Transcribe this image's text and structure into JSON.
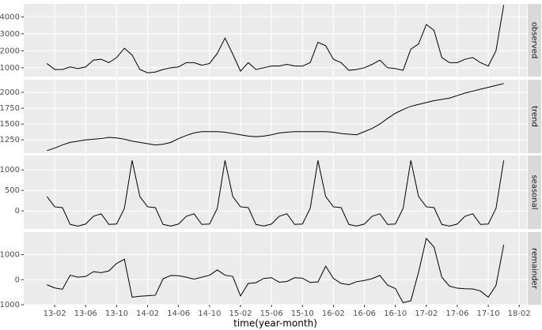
{
  "chart_data": [
    {
      "type": "line",
      "strip": "observed",
      "grid": true,
      "color": "#000000",
      "x": [
        "13-01",
        "13-02",
        "13-03",
        "13-04",
        "13-05",
        "13-06",
        "13-07",
        "13-08",
        "13-09",
        "13-10",
        "13-11",
        "13-12",
        "14-01",
        "14-02",
        "14-03",
        "14-04",
        "14-05",
        "14-06",
        "14-07",
        "14-08",
        "14-09",
        "14-10",
        "14-11",
        "14-12",
        "15-01",
        "15-02",
        "15-03",
        "15-04",
        "15-05",
        "15-06",
        "15-07",
        "15-08",
        "15-09",
        "15-10",
        "15-11",
        "15-12",
        "16-01",
        "16-02",
        "16-03",
        "16-04",
        "16-05",
        "16-06",
        "16-07",
        "16-08",
        "16-09",
        "16-10",
        "16-11",
        "16-12",
        "17-01",
        "17-02",
        "17-03",
        "17-04",
        "17-05",
        "17-06",
        "17-07",
        "17-08",
        "17-09",
        "17-10",
        "17-11",
        "17-12"
      ],
      "values": [
        1250,
        900,
        900,
        1050,
        950,
        1050,
        1450,
        1500,
        1300,
        1600,
        2150,
        1750,
        900,
        700,
        750,
        900,
        1000,
        1050,
        1300,
        1300,
        1150,
        1250,
        1850,
        2750,
        1800,
        800,
        1300,
        900,
        1000,
        1100,
        1100,
        1200,
        1100,
        1100,
        1300,
        2500,
        2300,
        1500,
        1300,
        850,
        900,
        1000,
        1200,
        1450,
        1000,
        950,
        850,
        2100,
        2400,
        3550,
        3200,
        1600,
        1300,
        1300,
        1500,
        1600,
        1300,
        1100,
        2000,
        4700
      ],
      "xlim": [
        "12-10",
        "18-03"
      ],
      "ylim": [
        480,
        4760
      ],
      "yticks": [
        1000,
        2000,
        3000,
        4000
      ]
    },
    {
      "type": "line",
      "strip": "trend",
      "grid": true,
      "color": "#000000",
      "x": [
        "13-01",
        "13-02",
        "13-03",
        "13-04",
        "13-05",
        "13-06",
        "13-07",
        "13-08",
        "13-09",
        "13-10",
        "13-11",
        "13-12",
        "14-01",
        "14-02",
        "14-03",
        "14-04",
        "14-05",
        "14-06",
        "14-07",
        "14-08",
        "14-09",
        "14-10",
        "14-11",
        "14-12",
        "15-01",
        "15-02",
        "15-03",
        "15-04",
        "15-05",
        "15-06",
        "15-07",
        "15-08",
        "15-09",
        "15-10",
        "15-11",
        "15-12",
        "16-01",
        "16-02",
        "16-03",
        "16-04",
        "16-05",
        "16-06",
        "16-07",
        "16-08",
        "16-09",
        "16-10",
        "16-11",
        "16-12",
        "17-01",
        "17-02",
        "17-03",
        "17-04",
        "17-05",
        "17-06",
        "17-07",
        "17-08",
        "17-09",
        "17-10",
        "17-11",
        "17-12"
      ],
      "values": [
        1080,
        1120,
        1170,
        1210,
        1230,
        1250,
        1260,
        1270,
        1290,
        1280,
        1260,
        1230,
        1210,
        1190,
        1170,
        1180,
        1210,
        1270,
        1320,
        1360,
        1380,
        1380,
        1380,
        1370,
        1350,
        1330,
        1310,
        1300,
        1310,
        1330,
        1360,
        1370,
        1380,
        1380,
        1380,
        1380,
        1380,
        1370,
        1350,
        1340,
        1330,
        1380,
        1430,
        1500,
        1590,
        1670,
        1730,
        1780,
        1810,
        1840,
        1870,
        1890,
        1910,
        1950,
        1990,
        2020,
        2050,
        2080,
        2110,
        2140
      ],
      "xlim": [
        "12-10",
        "18-03"
      ],
      "ylim": [
        1040,
        2200
      ],
      "yticks": [
        1250,
        1500,
        1750,
        2000
      ]
    },
    {
      "type": "line",
      "strip": "seasonal",
      "grid": true,
      "color": "#000000",
      "x": [
        "13-01",
        "13-02",
        "13-03",
        "13-04",
        "13-05",
        "13-06",
        "13-07",
        "13-08",
        "13-09",
        "13-10",
        "13-11",
        "13-12",
        "14-01",
        "14-02",
        "14-03",
        "14-04",
        "14-05",
        "14-06",
        "14-07",
        "14-08",
        "14-09",
        "14-10",
        "14-11",
        "14-12",
        "15-01",
        "15-02",
        "15-03",
        "15-04",
        "15-05",
        "15-06",
        "15-07",
        "15-08",
        "15-09",
        "15-10",
        "15-11",
        "15-12",
        "16-01",
        "16-02",
        "16-03",
        "16-04",
        "16-05",
        "16-06",
        "16-07",
        "16-08",
        "16-09",
        "16-10",
        "16-11",
        "16-12",
        "17-01",
        "17-02",
        "17-03",
        "17-04",
        "17-05",
        "17-06",
        "17-07",
        "17-08",
        "17-09",
        "17-10",
        "17-11",
        "17-12"
      ],
      "values": [
        350,
        100,
        80,
        -330,
        -370,
        -320,
        -130,
        -70,
        -330,
        -320,
        60,
        1230,
        350,
        100,
        80,
        -330,
        -370,
        -320,
        -130,
        -70,
        -330,
        -320,
        60,
        1230,
        350,
        100,
        80,
        -330,
        -370,
        -320,
        -130,
        -70,
        -330,
        -320,
        60,
        1230,
        350,
        100,
        80,
        -330,
        -370,
        -320,
        -130,
        -70,
        -330,
        -320,
        60,
        1230,
        350,
        100,
        80,
        -330,
        -370,
        -320,
        -130,
        -70,
        -330,
        -320,
        60,
        1230
      ],
      "xlim": [
        "12-10",
        "18-03"
      ],
      "ylim": [
        -440,
        1350
      ],
      "yticks": [
        0,
        500,
        1000
      ]
    },
    {
      "type": "line",
      "strip": "remainder",
      "grid": true,
      "color": "#000000",
      "x": [
        "13-01",
        "13-02",
        "13-03",
        "13-04",
        "13-05",
        "13-06",
        "13-07",
        "13-08",
        "13-09",
        "13-10",
        "13-11",
        "13-12",
        "14-01",
        "14-02",
        "14-03",
        "14-04",
        "14-05",
        "14-06",
        "14-07",
        "14-08",
        "14-09",
        "14-10",
        "14-11",
        "14-12",
        "15-01",
        "15-02",
        "15-03",
        "15-04",
        "15-05",
        "15-06",
        "15-07",
        "15-08",
        "15-09",
        "15-10",
        "15-11",
        "15-12",
        "16-01",
        "16-02",
        "16-03",
        "16-04",
        "16-05",
        "16-06",
        "16-07",
        "16-08",
        "16-09",
        "16-10",
        "16-11",
        "16-12",
        "17-01",
        "17-02",
        "17-03",
        "17-04",
        "17-05",
        "17-06",
        "17-07",
        "17-08",
        "17-09",
        "17-10",
        "17-11",
        "17-12"
      ],
      "values": [
        -200,
        -330,
        -380,
        180,
        100,
        130,
        320,
        280,
        350,
        650,
        820,
        -700,
        -660,
        -640,
        -620,
        40,
        170,
        160,
        100,
        20,
        100,
        180,
        390,
        180,
        130,
        -650,
        -150,
        -120,
        50,
        80,
        -100,
        -70,
        80,
        60,
        -110,
        -90,
        540,
        50,
        -150,
        -200,
        -80,
        -30,
        40,
        170,
        -220,
        -350,
        -920,
        -840,
        300,
        1650,
        1300,
        100,
        -260,
        -340,
        -360,
        -370,
        -450,
        -700,
        -230,
        1400
      ],
      "xlim": [
        "12-10",
        "18-03"
      ],
      "ylim": [
        -1000,
        1900
      ],
      "yticks": [
        -1000,
        0,
        1000
      ],
      "xticks": [
        "13-02",
        "13-06",
        "13-10",
        "14-02",
        "14-06",
        "14-10",
        "15-02",
        "15-06",
        "15-10",
        "16-02",
        "16-06",
        "16-10",
        "17-02",
        "17-06",
        "17-10",
        "18-02"
      ],
      "xlabel": "time(year-month)"
    }
  ]
}
